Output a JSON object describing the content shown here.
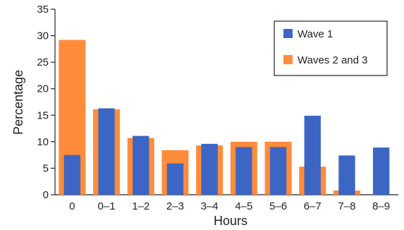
{
  "chart_data": {
    "type": "bar",
    "title": "",
    "xlabel": "Hours",
    "ylabel": "Percentage",
    "categories": [
      "0",
      "0–1",
      "1–2",
      "2–3",
      "3–4",
      "4–5",
      "5–6",
      "6–7",
      "7–8",
      "8–9"
    ],
    "ylim": [
      0,
      35
    ],
    "yticks": [
      0,
      5,
      10,
      15,
      20,
      25,
      30,
      35
    ],
    "grid": false,
    "legend_position": "top-right",
    "series": [
      {
        "name": "Wave 1",
        "color": "#3d66c4",
        "values": [
          7.5,
          16.3,
          11.1,
          5.9,
          9.6,
          9.0,
          9.0,
          14.9,
          7.4,
          8.9
        ]
      },
      {
        "name": "Waves 2 and 3",
        "color": "#ff8c3a",
        "values": [
          29.2,
          16.1,
          10.7,
          8.4,
          9.3,
          10.0,
          10.0,
          5.3,
          0.8,
          0
        ]
      }
    ]
  }
}
